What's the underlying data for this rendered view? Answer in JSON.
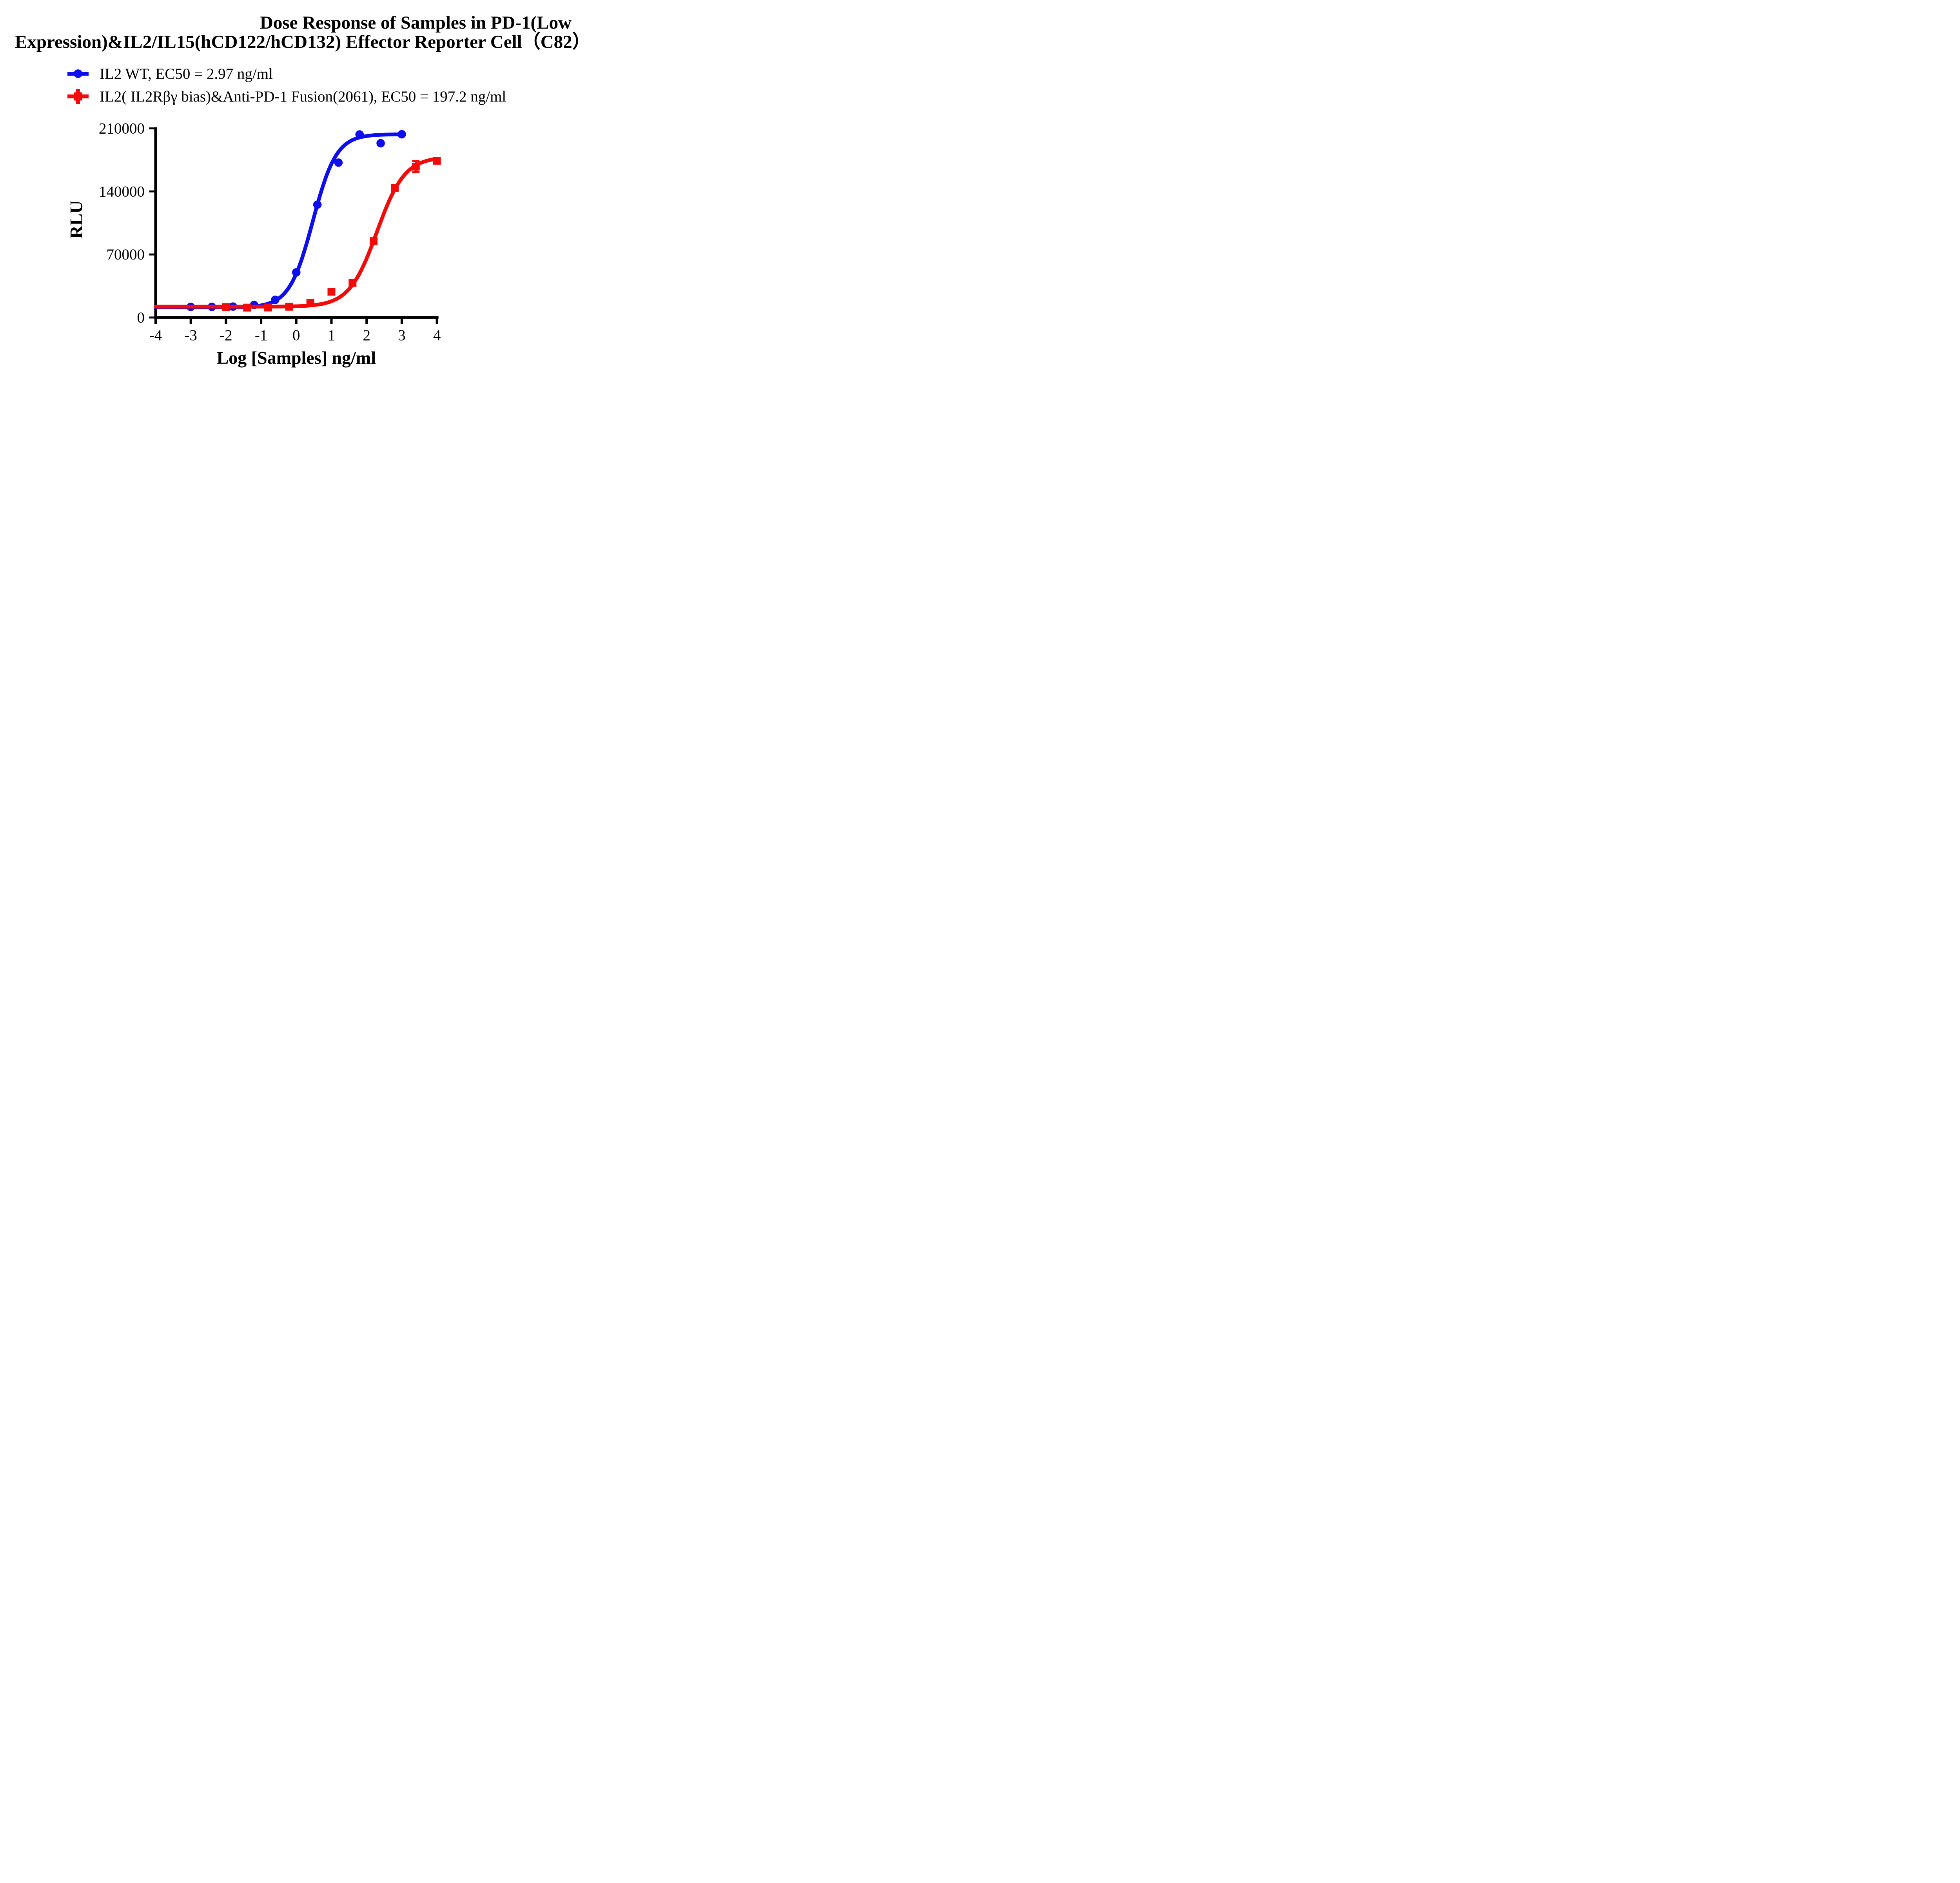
{
  "title": {
    "line1": "Dose Response of Samples in PD-1(Low",
    "line2": "Expression)&IL2/IL15(hCD122/hCD132) Effector Reporter Cell（C82）"
  },
  "chart_data": {
    "type": "line",
    "title": "Dose Response of Samples in PD-1(Low Expression)&IL2/IL15(hCD122/hCD132) Effector Reporter Cell（C82）",
    "xlabel": "Log [Samples] ng/ml",
    "ylabel": "RLU",
    "xlim": [
      -4,
      4
    ],
    "ylim": [
      0,
      210000
    ],
    "xticks": [
      -4,
      -3,
      -2,
      -1,
      0,
      1,
      2,
      3,
      4
    ],
    "yticks": [
      0,
      70000,
      140000,
      210000
    ],
    "grid": false,
    "legend_position": "top-left",
    "series": [
      {
        "name": "IL2 WT, EC50 = 2.97 ng/ml",
        "ec50_ng_ml": 2.97,
        "color": "#0d0df0",
        "marker": "circle",
        "x": [
          -3.0,
          -2.4,
          -1.8,
          -1.2,
          -0.6,
          0.0,
          0.6,
          1.2,
          1.8,
          2.4,
          3.0
        ],
        "y": [
          11800,
          11800,
          12100,
          13900,
          19600,
          50100,
          125300,
          172000,
          203300,
          193500,
          203500
        ],
        "fit": {
          "bottom": 11200,
          "top": 203500,
          "log_ec50": 0.473,
          "hill": 1.3,
          "curve_x_range": [
            -4.0,
            3.0
          ]
        }
      },
      {
        "name": "IL2( IL2Rβγ bias)&Anti-PD-1 Fusion(2061), EC50 = 197.2 ng/ml",
        "ec50_ng_ml": 197.2,
        "color": "#f50a0a",
        "marker": "square",
        "x": [
          -2.0,
          -1.4,
          -0.8,
          -0.2,
          0.4,
          1.0,
          1.6,
          2.2,
          2.8,
          3.4,
          4.0
        ],
        "y": [
          11600,
          11000,
          11100,
          11900,
          16100,
          28600,
          38400,
          84800,
          143900,
          167500,
          174000
        ],
        "error_bars": [
          {
            "x": 3.4,
            "y": 167500,
            "plus": 6200,
            "minus": 6200
          }
        ],
        "fit": {
          "bottom": 12000,
          "top": 178500,
          "log_ec50": 2.295,
          "hill": 1.1,
          "curve_x_range": [
            -4.0,
            4.0
          ]
        }
      }
    ]
  }
}
